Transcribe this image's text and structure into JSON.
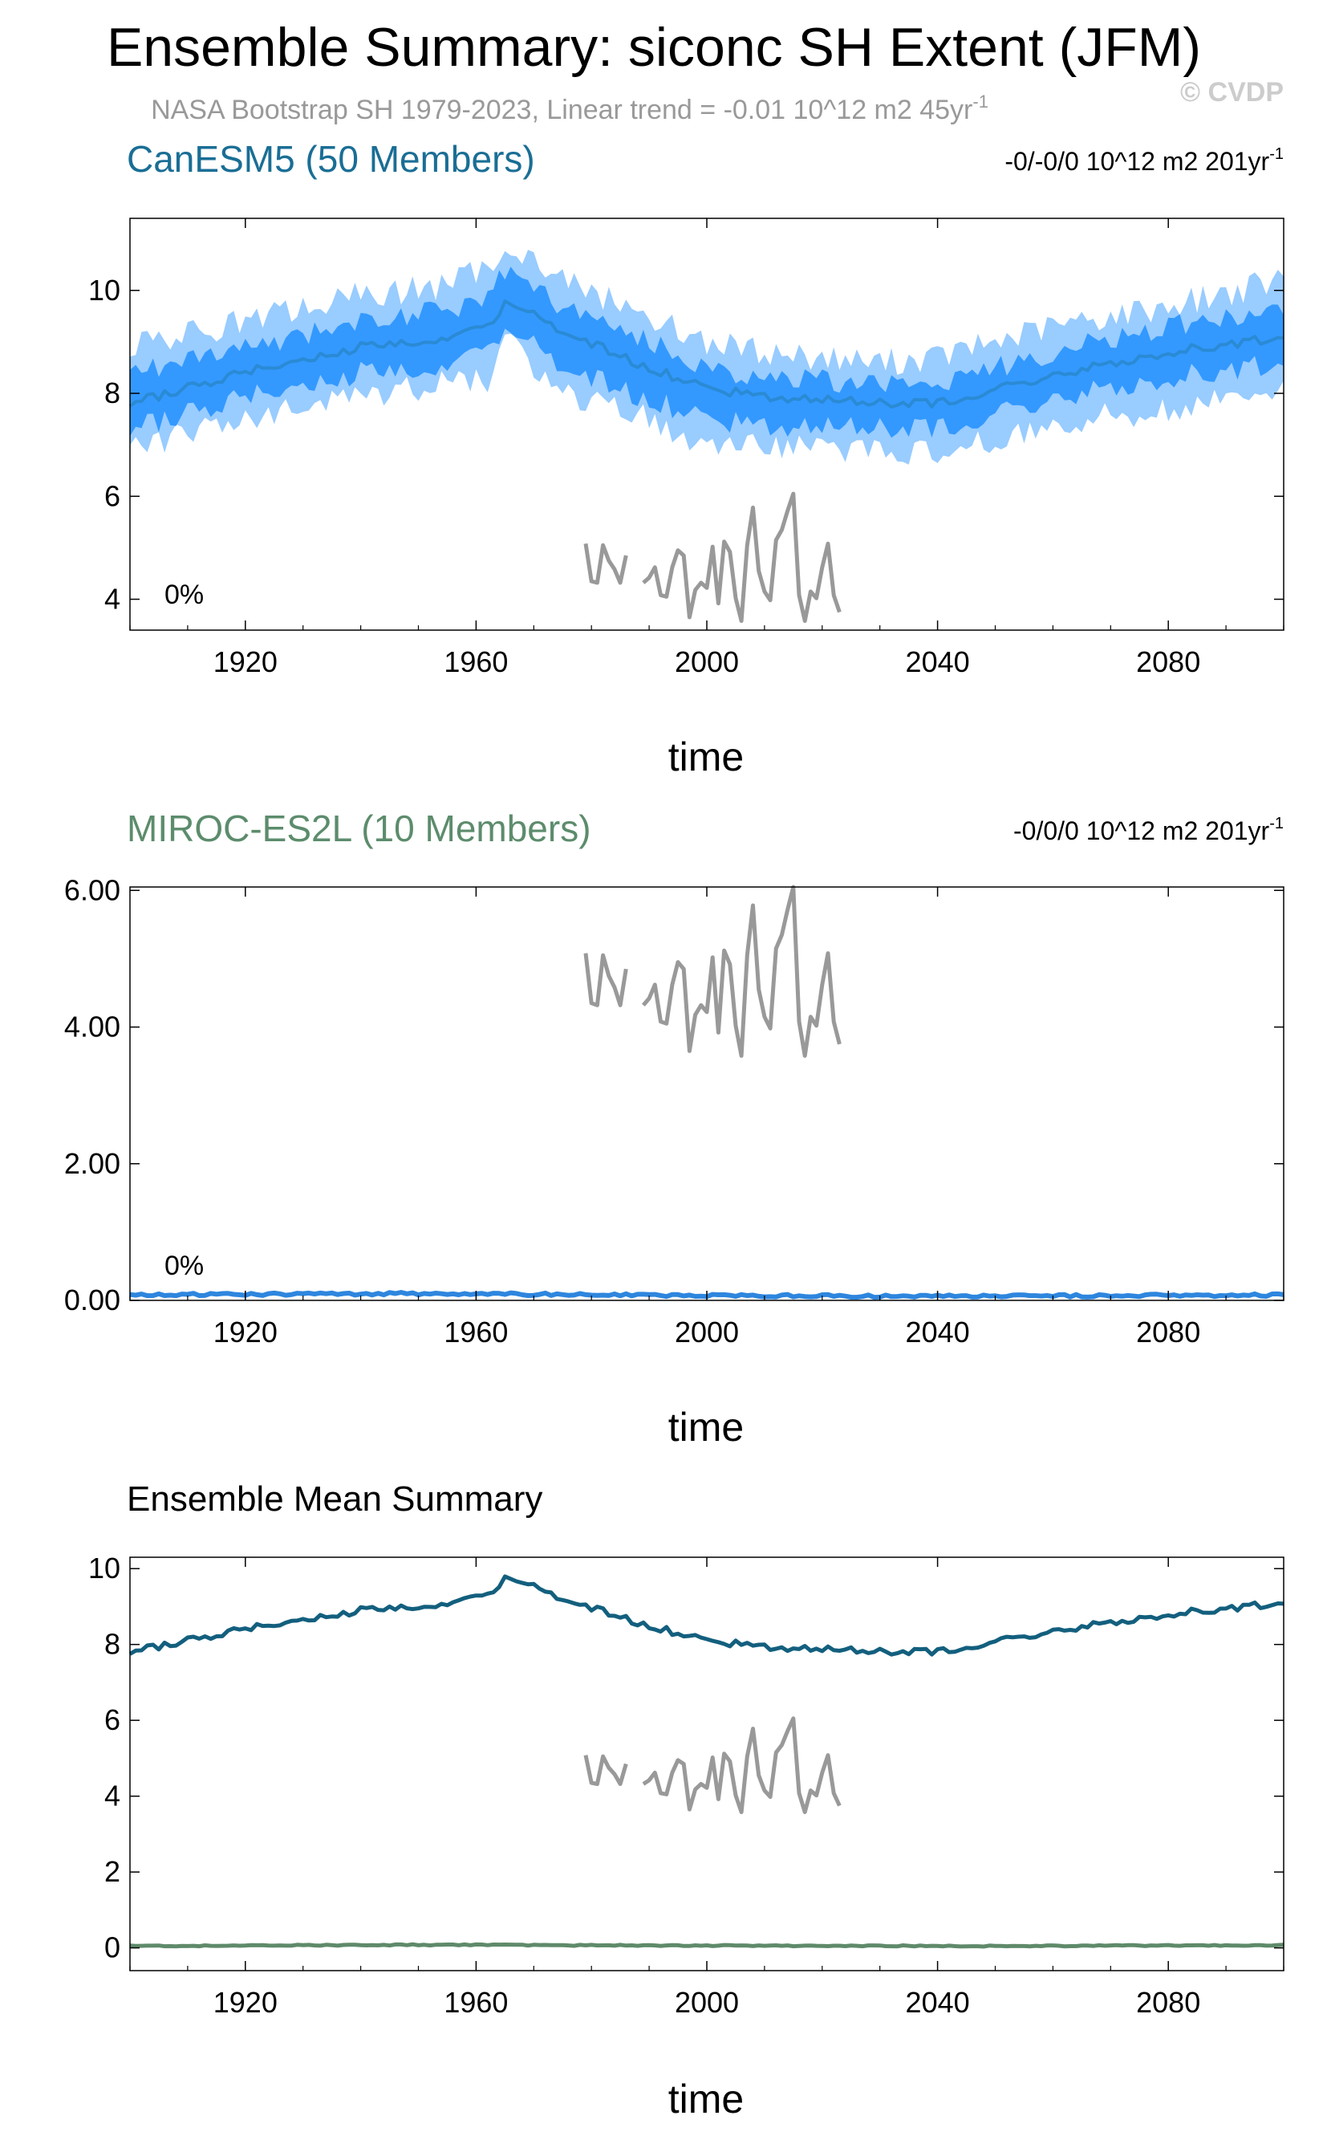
{
  "figure": {
    "title": "Ensemble Summary: siconc SH Extent (JFM)",
    "subtitle": "NASA Bootstrap SH 1979-2023, Linear trend = -0.01 10^12 m2 45yr",
    "subtitle_sup": "-1",
    "watermark": "© CVDP"
  },
  "colors": {
    "canesm5_title": "#1a6e95",
    "canesm5_mean": "#2a8ad4",
    "canesm5_inner": "#3399ff",
    "canesm5_outer": "#99ccff",
    "miroc_title": "#5c8c6c",
    "miroc_line": "#2e86de",
    "obs": "#999999",
    "mean_canesm5": "#135f7e",
    "mean_miroc": "#5f8a6a",
    "subtitle": "#999999",
    "watermark": "#cccccc"
  },
  "chart_data": [
    {
      "id": "canesm5",
      "type": "area",
      "title": "CanESM5 (50 Members)",
      "trend_label": "-0/-0/0 10^12 m2 201yr",
      "trend_sup": "-1",
      "percent_label": "0%",
      "xlabel": "time",
      "ylabel": "",
      "xlim": [
        1900,
        2100
      ],
      "ylim": [
        3.4,
        11.4
      ],
      "xticks": [
        1920,
        1960,
        2000,
        2040,
        2080
      ],
      "yticks": [
        4,
        6,
        8,
        10
      ],
      "ytick_labels": [
        "4",
        "6",
        "8",
        "10"
      ],
      "series": [
        {
          "name": "",
          "kind": "band_outer",
          "anchors": [
            [
              1900,
              6.9,
              8.9
            ],
            [
              1920,
              7.5,
              9.4
            ],
            [
              1940,
              7.9,
              9.9
            ],
            [
              1955,
              8.2,
              10.1
            ],
            [
              1963,
              8.3,
              10.5
            ],
            [
              1965,
              9.0,
              11.0
            ],
            [
              1975,
              8.0,
              10.2
            ],
            [
              1990,
              7.5,
              9.5
            ],
            [
              2000,
              7.0,
              9.0
            ],
            [
              2010,
              7.0,
              8.8
            ],
            [
              2030,
              6.9,
              8.6
            ],
            [
              2040,
              6.8,
              8.7
            ],
            [
              2060,
              7.4,
              9.3
            ],
            [
              2080,
              7.7,
              9.7
            ],
            [
              2100,
              8.1,
              10.2
            ]
          ]
        },
        {
          "name": "",
          "kind": "band_inner",
          "anchors": [
            [
              1900,
              7.3,
              8.4
            ],
            [
              1920,
              7.9,
              8.9
            ],
            [
              1940,
              8.4,
              9.4
            ],
            [
              1955,
              8.6,
              9.6
            ],
            [
              1963,
              8.8,
              10.0
            ],
            [
              1965,
              9.4,
              10.4
            ],
            [
              1975,
              8.5,
              9.7
            ],
            [
              1990,
              7.9,
              9.0
            ],
            [
              2000,
              7.5,
              8.5
            ],
            [
              2010,
              7.4,
              8.3
            ],
            [
              2030,
              7.3,
              8.2
            ],
            [
              2040,
              7.3,
              8.2
            ],
            [
              2060,
              7.9,
              8.8
            ],
            [
              2080,
              8.3,
              9.3
            ],
            [
              2100,
              8.6,
              9.6
            ]
          ]
        },
        {
          "name": "",
          "kind": "mean",
          "anchors": [
            [
              1900,
              7.8
            ],
            [
              1920,
              8.4
            ],
            [
              1940,
              8.9
            ],
            [
              1955,
              9.1
            ],
            [
              1963,
              9.3
            ],
            [
              1965,
              9.85
            ],
            [
              1975,
              9.2
            ],
            [
              1990,
              8.5
            ],
            [
              2000,
              8.1
            ],
            [
              2010,
              7.95
            ],
            [
              2030,
              7.8
            ],
            [
              2040,
              7.8
            ],
            [
              2060,
              8.35
            ],
            [
              2080,
              8.8
            ],
            [
              2100,
              9.1
            ]
          ]
        }
      ],
      "obs": {
        "x": [
          1979,
          1980,
          1981,
          1982,
          1983,
          1984,
          1985,
          1986,
          1987,
          1988,
          1989,
          1990,
          1991,
          1992,
          1993,
          1994,
          1995,
          1996,
          1997,
          1998,
          1999,
          2000,
          2001,
          2002,
          2003,
          2004,
          2005,
          2006,
          2007,
          2008,
          2009,
          2010,
          2011,
          2012,
          2013,
          2014,
          2015,
          2016,
          2017,
          2018,
          2019,
          2020,
          2021,
          2022,
          2023
        ],
        "y": [
          5.08,
          4.35,
          4.32,
          5.05,
          4.75,
          4.58,
          4.32,
          4.85,
          null,
          null,
          4.32,
          4.42,
          4.62,
          4.08,
          4.05,
          4.62,
          4.95,
          4.85,
          3.65,
          4.18,
          4.32,
          4.22,
          5.02,
          3.92,
          5.12,
          4.92,
          4.02,
          3.58,
          5.05,
          5.78,
          4.55,
          4.15,
          3.98,
          5.15,
          5.35,
          5.72,
          6.05,
          4.08,
          3.58,
          4.15,
          4.02,
          4.62,
          5.08,
          4.08,
          3.75
        ]
      }
    },
    {
      "id": "miroc",
      "type": "line",
      "title": "MIROC-ES2L (10 Members)",
      "trend_label": "-0/0/0 10^12 m2 201yr",
      "trend_sup": "-1",
      "percent_label": "0%",
      "xlabel": "time",
      "ylabel": "",
      "xlim": [
        1900,
        2100
      ],
      "ylim": [
        0,
        6.05
      ],
      "xticks": [
        1920,
        1960,
        2000,
        2040,
        2080
      ],
      "yticks": [
        0,
        2,
        4,
        6
      ],
      "ytick_labels": [
        "0.00",
        "2.00",
        "4.00",
        "6.00"
      ],
      "series": [
        {
          "name": "",
          "kind": "mean",
          "anchors": [
            [
              1900,
              0.08
            ],
            [
              1950,
              0.1
            ],
            [
              2000,
              0.07
            ],
            [
              2050,
              0.06
            ],
            [
              2100,
              0.08
            ]
          ]
        }
      ],
      "obs_ref": "canesm5"
    },
    {
      "id": "mean",
      "type": "line",
      "title": "Ensemble Mean Summary",
      "xlabel": "time",
      "ylabel": "",
      "xlim": [
        1900,
        2100
      ],
      "ylim": [
        -0.6,
        10.3
      ],
      "xticks": [
        1920,
        1960,
        2000,
        2040,
        2080
      ],
      "yticks": [
        0,
        2,
        4,
        6,
        8,
        10
      ],
      "ytick_labels": [
        "0",
        "2",
        "4",
        "6",
        "8",
        "10"
      ],
      "series": [
        {
          "name": "",
          "kind": "mean_canesm5",
          "ref": "canesm5"
        },
        {
          "name": "",
          "kind": "mean_miroc",
          "anchors": [
            [
              1900,
              0.05
            ],
            [
              1950,
              0.08
            ],
            [
              2000,
              0.06
            ],
            [
              2050,
              0.05
            ],
            [
              2100,
              0.07
            ]
          ]
        }
      ],
      "obs_ref": "canesm5"
    }
  ]
}
